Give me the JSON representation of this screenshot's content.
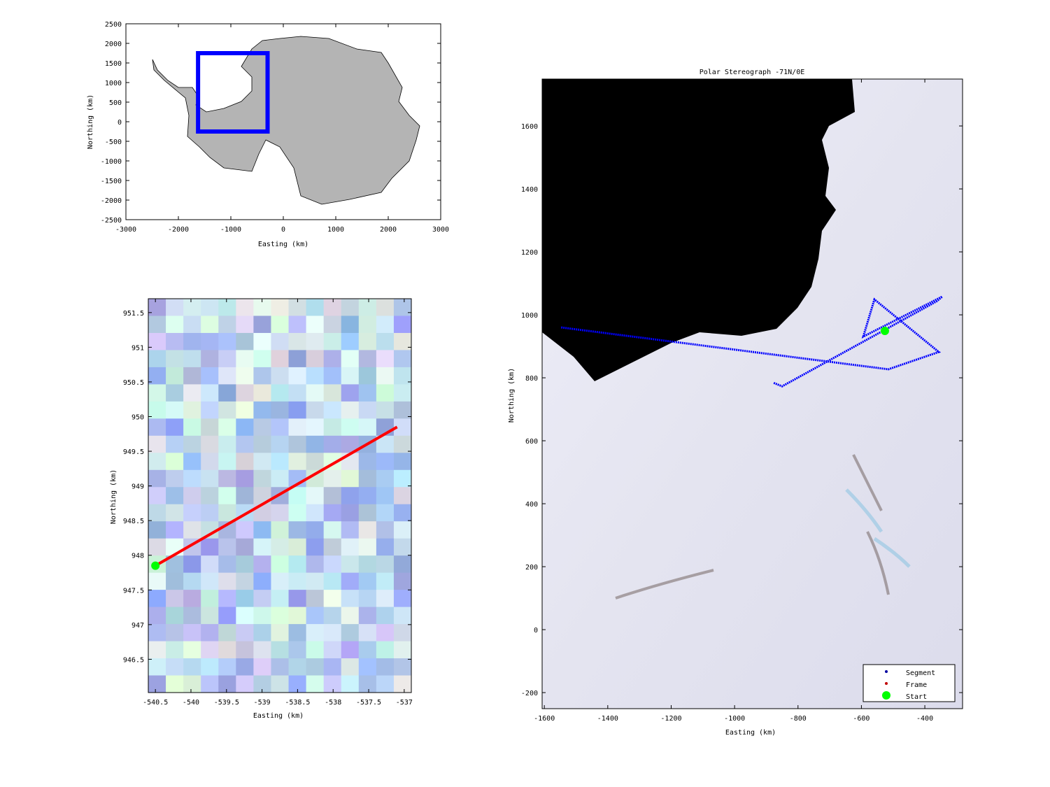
{
  "chart_data": [
    {
      "id": "overview",
      "type": "map",
      "title": "",
      "xlabel": "Easting (km)",
      "ylabel": "Northing (km)",
      "xlim": [
        -3000,
        3000
      ],
      "ylim": [
        -2500,
        2500
      ],
      "xticks": [
        "-3000",
        "-2000",
        "-1000",
        "0",
        "1000",
        "2000",
        "3000"
      ],
      "xtick_values": [
        -3000,
        -2000,
        -1000,
        0,
        1000,
        2000,
        3000
      ],
      "yticks": [
        "-2500",
        "-2000",
        "-1500",
        "-1000",
        "-500",
        "0",
        "500",
        "1000",
        "1500",
        "2000",
        "2500"
      ],
      "ytick_values": [
        -2500,
        -2000,
        -1500,
        -1000,
        -500,
        0,
        500,
        1000,
        1500,
        2000,
        2500
      ],
      "land_color": "#b4b4b4",
      "region_box": {
        "x": [
          -1625,
          -300
        ],
        "y": [
          -250,
          1750
        ],
        "color": "#0000ff"
      }
    },
    {
      "id": "frame-detail",
      "type": "heatmap",
      "title": "",
      "xlabel": "Easting (km)",
      "ylabel": "Northing (km)",
      "xlim": [
        -540.6,
        -536.9
      ],
      "ylim": [
        946.02,
        951.7
      ],
      "xticks": [
        "-540.5",
        "-540",
        "-539.5",
        "-539",
        "-538.5",
        "-538",
        "-537.5",
        "-537"
      ],
      "xtick_values": [
        -540.5,
        -540,
        -539.5,
        -539,
        -538.5,
        -538,
        -537.5,
        -537
      ],
      "yticks": [
        "946.5",
        "947",
        "947.5",
        "948",
        "948.5",
        "949",
        "949.5",
        "950",
        "950.5",
        "951",
        "951.5"
      ],
      "ytick_values": [
        946.5,
        947,
        947.5,
        948,
        948.5,
        949,
        949.5,
        950,
        950.5,
        951,
        951.5
      ],
      "frame_line": {
        "x": [
          -540.5,
          -537.1
        ],
        "y": [
          947.85,
          949.85
        ],
        "color": "#ff0000"
      },
      "start": {
        "x": -540.5,
        "y": 947.85,
        "color": "#00ff00"
      }
    },
    {
      "id": "flight-map",
      "type": "line",
      "title": "Polar Stereograph -71N/0E",
      "xlabel": "Easting (km)",
      "ylabel": "Northing (km)",
      "xlim": [
        -1607,
        -281
      ],
      "ylim": [
        -251,
        1749
      ],
      "xticks": [
        "-1600",
        "-1400",
        "-1200",
        "-1000",
        "-800",
        "-600",
        "-400"
      ],
      "xtick_values": [
        -1600,
        -1400,
        -1200,
        -1000,
        -800,
        -600,
        -400
      ],
      "yticks": [
        "-200",
        "0",
        "200",
        "400",
        "600",
        "800",
        "1000",
        "1200",
        "1400",
        "1600"
      ],
      "ytick_values": [
        -200,
        0,
        200,
        400,
        600,
        800,
        1000,
        1200,
        1400,
        1600
      ],
      "segment": {
        "x": [
          -1547,
          -515,
          -356,
          -559,
          -594,
          -345,
          -361,
          -850,
          -877
        ],
        "y": [
          960,
          827,
          882,
          1049,
          931,
          1058,
          1044,
          773,
          784
        ],
        "color": "#0000ff"
      },
      "start": {
        "x": -526,
        "y": 949,
        "color": "#00ff00"
      },
      "legend": {
        "placement": "bottom-right",
        "entries": [
          {
            "label": "Segment",
            "color": "#0000a0",
            "marker": "dot"
          },
          {
            "label": "Frame",
            "color": "#c00000",
            "marker": "dot"
          },
          {
            "label": "Start",
            "color": "#00ff00",
            "marker": "big-dot"
          }
        ]
      }
    }
  ]
}
